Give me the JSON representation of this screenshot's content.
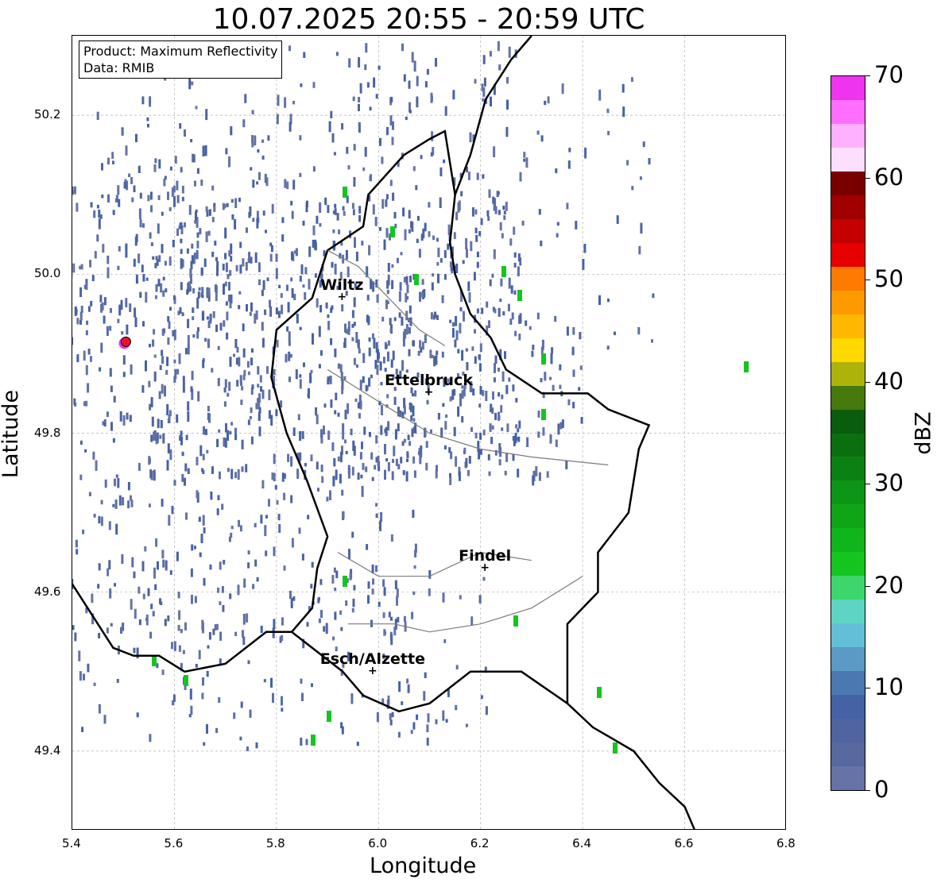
{
  "title": "10.07.2025 20:55 - 20:59 UTC",
  "info_box": {
    "product": "Product: Maximum Reflectivity",
    "data": "Data: RMIB"
  },
  "map": {
    "xlim": [
      5.4,
      6.8
    ],
    "ylim": [
      49.3,
      50.3
    ],
    "xlabel": "Longitude",
    "ylabel": "Latitude",
    "x_ticks": [
      "5.4",
      "5.6",
      "5.8",
      "6.0",
      "6.2",
      "6.4",
      "6.6",
      "6.8"
    ],
    "y_ticks": [
      "49.4",
      "49.6",
      "49.8",
      "50.0",
      "50.2"
    ],
    "grid": true,
    "cities": [
      {
        "name": "Wiltz",
        "lon": 5.93,
        "lat": 49.97
      },
      {
        "name": "Ettelbruck",
        "lon": 6.1,
        "lat": 49.85
      },
      {
        "name": "Findel",
        "lon": 6.21,
        "lat": 49.63
      },
      {
        "name": "Esch/Alzette",
        "lon": 5.99,
        "lat": 49.5
      }
    ],
    "radar_site": {
      "lon": 5.505,
      "lat": 49.915,
      "color": "#e8112d"
    }
  },
  "colorbar": {
    "label": "dBZ",
    "ticks": [
      "0",
      "10",
      "20",
      "30",
      "40",
      "50",
      "60",
      "70"
    ],
    "range": [
      0,
      70
    ],
    "colors": [
      "#6573a6",
      "#57699f",
      "#4f64a0",
      "#4462a5",
      "#4b78b0",
      "#5a9ac4",
      "#63bfd8",
      "#5ed5c4",
      "#3ed66c",
      "#14c520",
      "#0fb51a",
      "#0fa517",
      "#0d9516",
      "#0c8113",
      "#0b6f0f",
      "#0a5d0c",
      "#467a0d",
      "#aeb30a",
      "#ffd800",
      "#ffb700",
      "#ff9900",
      "#ff7a00",
      "#e60000",
      "#c40000",
      "#a00000",
      "#7a0000",
      "#fedeff",
      "#ffb1ff",
      "#ff6eff",
      "#ee34ee"
    ]
  }
}
